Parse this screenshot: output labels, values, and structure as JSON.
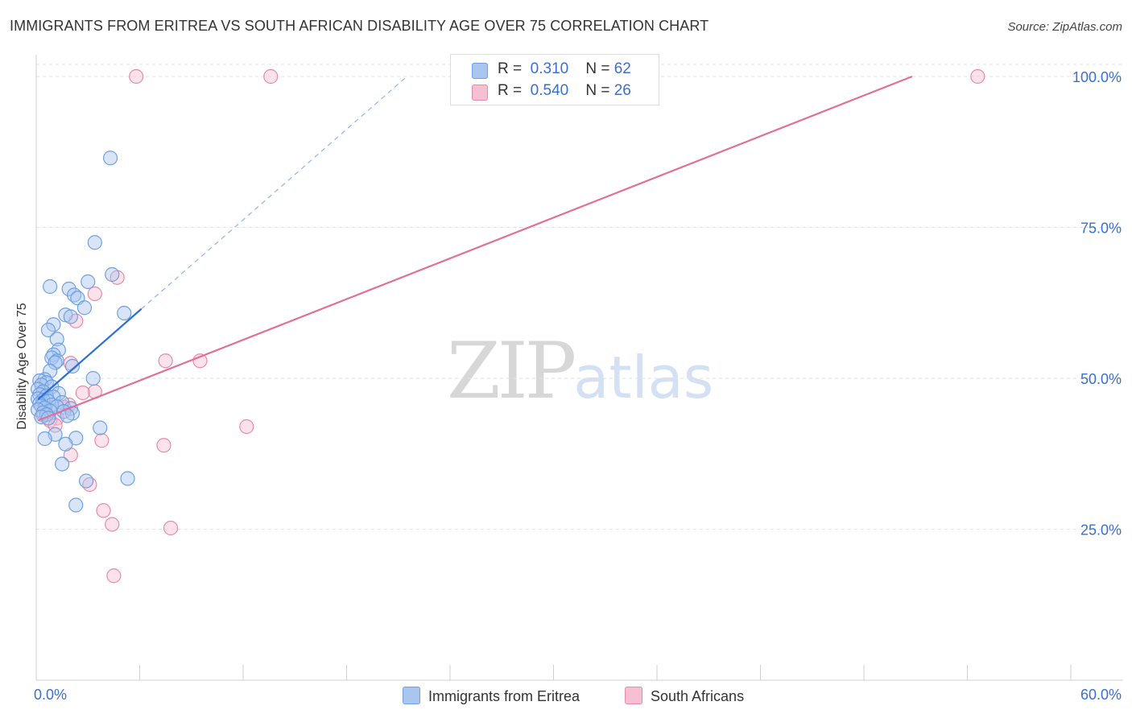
{
  "title": "IMMIGRANTS FROM ERITREA VS SOUTH AFRICAN DISABILITY AGE OVER 75 CORRELATION CHART",
  "source": "Source: ZipAtlas.com",
  "watermark": {
    "zip": "ZIP",
    "atlas": "atlas"
  },
  "legend": {
    "r_label": "R =",
    "n_label": "N =",
    "rows": [
      {
        "r": "0.310",
        "n": "62",
        "color": "#a8c6f0",
        "border": "#6f9fe0"
      },
      {
        "r": "0.540",
        "n": "26",
        "color": "#f6bfd2",
        "border": "#e58aa9"
      }
    ]
  },
  "chart_data": {
    "type": "scatter",
    "title": "IMMIGRANTS FROM ERITREA VS SOUTH AFRICAN DISABILITY AGE OVER 75 CORRELATION CHART",
    "xlabel": "",
    "ylabel": "Disability Age Over 75",
    "xlim": [
      0,
      60
    ],
    "ylim": [
      0,
      102
    ],
    "x_tick_labels": [
      "0.0%",
      "60.0%"
    ],
    "y_tick_labels": [
      "25.0%",
      "50.0%",
      "75.0%",
      "100.0%"
    ],
    "y_ticks": [
      25,
      50,
      75,
      100
    ],
    "grid": true,
    "legend_position": "bottom",
    "series": [
      {
        "name": "Immigrants from Eritrea",
        "color": "#6f9fe0",
        "fill": "#a8c6f0",
        "trend_color": "#2a6fd6",
        "trend": {
          "x0": 0.1,
          "y0": 46.5,
          "x1": 6.1,
          "y1": 61.5,
          "dash_to_x": 21.5,
          "dash_to_y": 100
        },
        "points": [
          [
            4.3,
            86.5
          ],
          [
            3.4,
            72.5
          ],
          [
            3.0,
            66.0
          ],
          [
            4.4,
            67.2
          ],
          [
            0.8,
            65.2
          ],
          [
            1.9,
            64.8
          ],
          [
            2.2,
            63.8
          ],
          [
            2.4,
            63.3
          ],
          [
            2.8,
            61.7
          ],
          [
            1.7,
            60.5
          ],
          [
            2.0,
            60.2
          ],
          [
            5.1,
            60.8
          ],
          [
            1.0,
            58.9
          ],
          [
            0.7,
            58.0
          ],
          [
            1.2,
            56.5
          ],
          [
            1.3,
            54.7
          ],
          [
            1.0,
            53.9
          ],
          [
            0.9,
            53.4
          ],
          [
            1.2,
            52.9
          ],
          [
            1.1,
            52.6
          ],
          [
            2.1,
            52.0
          ],
          [
            0.8,
            51.2
          ],
          [
            3.3,
            50.0
          ],
          [
            0.5,
            49.8
          ],
          [
            0.2,
            49.6
          ],
          [
            0.6,
            49.3
          ],
          [
            0.3,
            48.9
          ],
          [
            0.9,
            48.6
          ],
          [
            0.1,
            48.2
          ],
          [
            0.4,
            47.8
          ],
          [
            1.3,
            47.5
          ],
          [
            0.2,
            47.3
          ],
          [
            0.6,
            47.1
          ],
          [
            1.0,
            46.9
          ],
          [
            0.1,
            46.6
          ],
          [
            0.4,
            46.4
          ],
          [
            0.7,
            46.2
          ],
          [
            1.5,
            46.0
          ],
          [
            0.2,
            45.8
          ],
          [
            0.9,
            45.6
          ],
          [
            0.3,
            45.4
          ],
          [
            1.2,
            45.3
          ],
          [
            0.5,
            45.1
          ],
          [
            2.0,
            45.0
          ],
          [
            0.1,
            44.8
          ],
          [
            0.8,
            44.6
          ],
          [
            1.6,
            44.5
          ],
          [
            0.4,
            44.3
          ],
          [
            2.1,
            44.2
          ],
          [
            0.6,
            44.0
          ],
          [
            1.8,
            43.8
          ],
          [
            0.3,
            43.6
          ],
          [
            0.7,
            43.4
          ],
          [
            3.7,
            41.8
          ],
          [
            1.1,
            40.7
          ],
          [
            0.5,
            40.0
          ],
          [
            2.3,
            40.1
          ],
          [
            1.7,
            39.1
          ],
          [
            1.5,
            35.8
          ],
          [
            2.9,
            33.0
          ],
          [
            5.3,
            33.4
          ],
          [
            2.3,
            29.0
          ]
        ]
      },
      {
        "name": "South Africans",
        "color": "#e58aa9",
        "fill": "#f6bfd2",
        "trend_color": "#e0709a",
        "trend": {
          "x0": 0.1,
          "y0": 43.0,
          "x1": 50.8,
          "y1": 100
        },
        "points": [
          [
            5.8,
            100.0
          ],
          [
            13.6,
            100.0
          ],
          [
            54.6,
            100.0
          ],
          [
            4.7,
            66.7
          ],
          [
            3.4,
            64.0
          ],
          [
            2.3,
            59.5
          ],
          [
            7.5,
            52.9
          ],
          [
            9.5,
            52.9
          ],
          [
            2.0,
            52.5
          ],
          [
            3.4,
            47.8
          ],
          [
            2.7,
            47.6
          ],
          [
            1.9,
            45.6
          ],
          [
            1.6,
            45.2
          ],
          [
            0.4,
            43.9
          ],
          [
            1.2,
            43.4
          ],
          [
            0.8,
            43.0
          ],
          [
            1.1,
            42.2
          ],
          [
            12.2,
            42.0
          ],
          [
            3.8,
            39.7
          ],
          [
            7.4,
            38.9
          ],
          [
            2.0,
            37.3
          ],
          [
            3.1,
            32.4
          ],
          [
            3.9,
            28.1
          ],
          [
            4.4,
            25.8
          ],
          [
            7.8,
            25.2
          ],
          [
            4.5,
            17.3
          ]
        ]
      }
    ]
  }
}
